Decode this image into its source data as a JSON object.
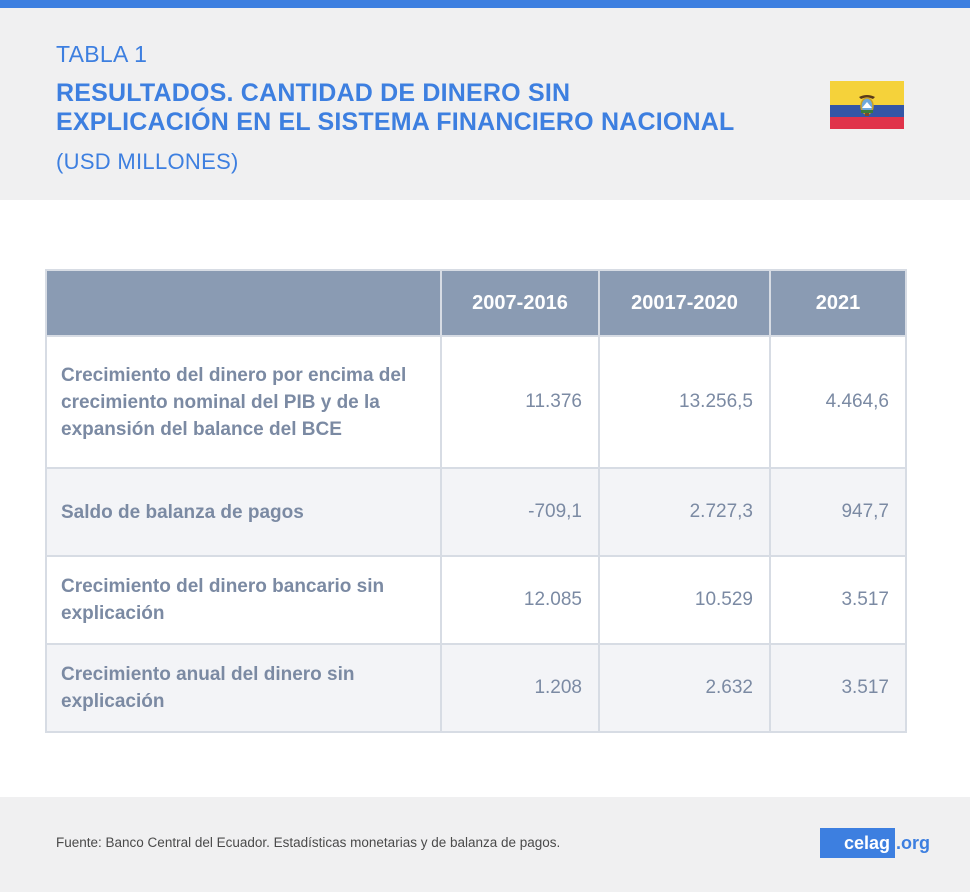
{
  "header": {
    "kicker": "TABLA 1",
    "title_line1": "RESULTADOS. CANTIDAD DE DINERO SIN",
    "title_line2": "EXPLICACIÓN EN EL SISTEMA FINANCIERO NACIONAL",
    "subtitle": "(USD MILLONES)"
  },
  "flag": {
    "country": "Ecuador",
    "icon": "ecuador-flag-icon",
    "colors": [
      "#f5d23a",
      "#3456a6",
      "#e0334a"
    ]
  },
  "table": {
    "columns": [
      "",
      "2007-2016",
      "20017-2020",
      "2021"
    ],
    "rows": [
      {
        "label": "Crecimiento del dinero por encima del crecimiento nominal del PIB y de la expansión del balance del BCE",
        "values": [
          "11.376",
          "13.256,5",
          "4.464,6"
        ]
      },
      {
        "label": "Saldo de balanza de pagos",
        "values": [
          "-709,1",
          "2.727,3",
          "947,7"
        ]
      },
      {
        "label": "Crecimiento del dinero bancario sin explicación",
        "values": [
          "12.085",
          "10.529",
          "3.517"
        ]
      },
      {
        "label": "Crecimiento anual del dinero sin explicación",
        "values": [
          "1.208",
          "2.632",
          "3.517"
        ]
      }
    ]
  },
  "footer": {
    "source": "Fuente: Banco Central del Ecuador. Estadísticas monetarias y de balanza de pagos.",
    "logo_box": "celag",
    "logo_suffix": ".org"
  },
  "colors": {
    "accent": "#3d7fe0",
    "header_cell": "#8a9bb3",
    "body_text": "#7b8aa3"
  }
}
